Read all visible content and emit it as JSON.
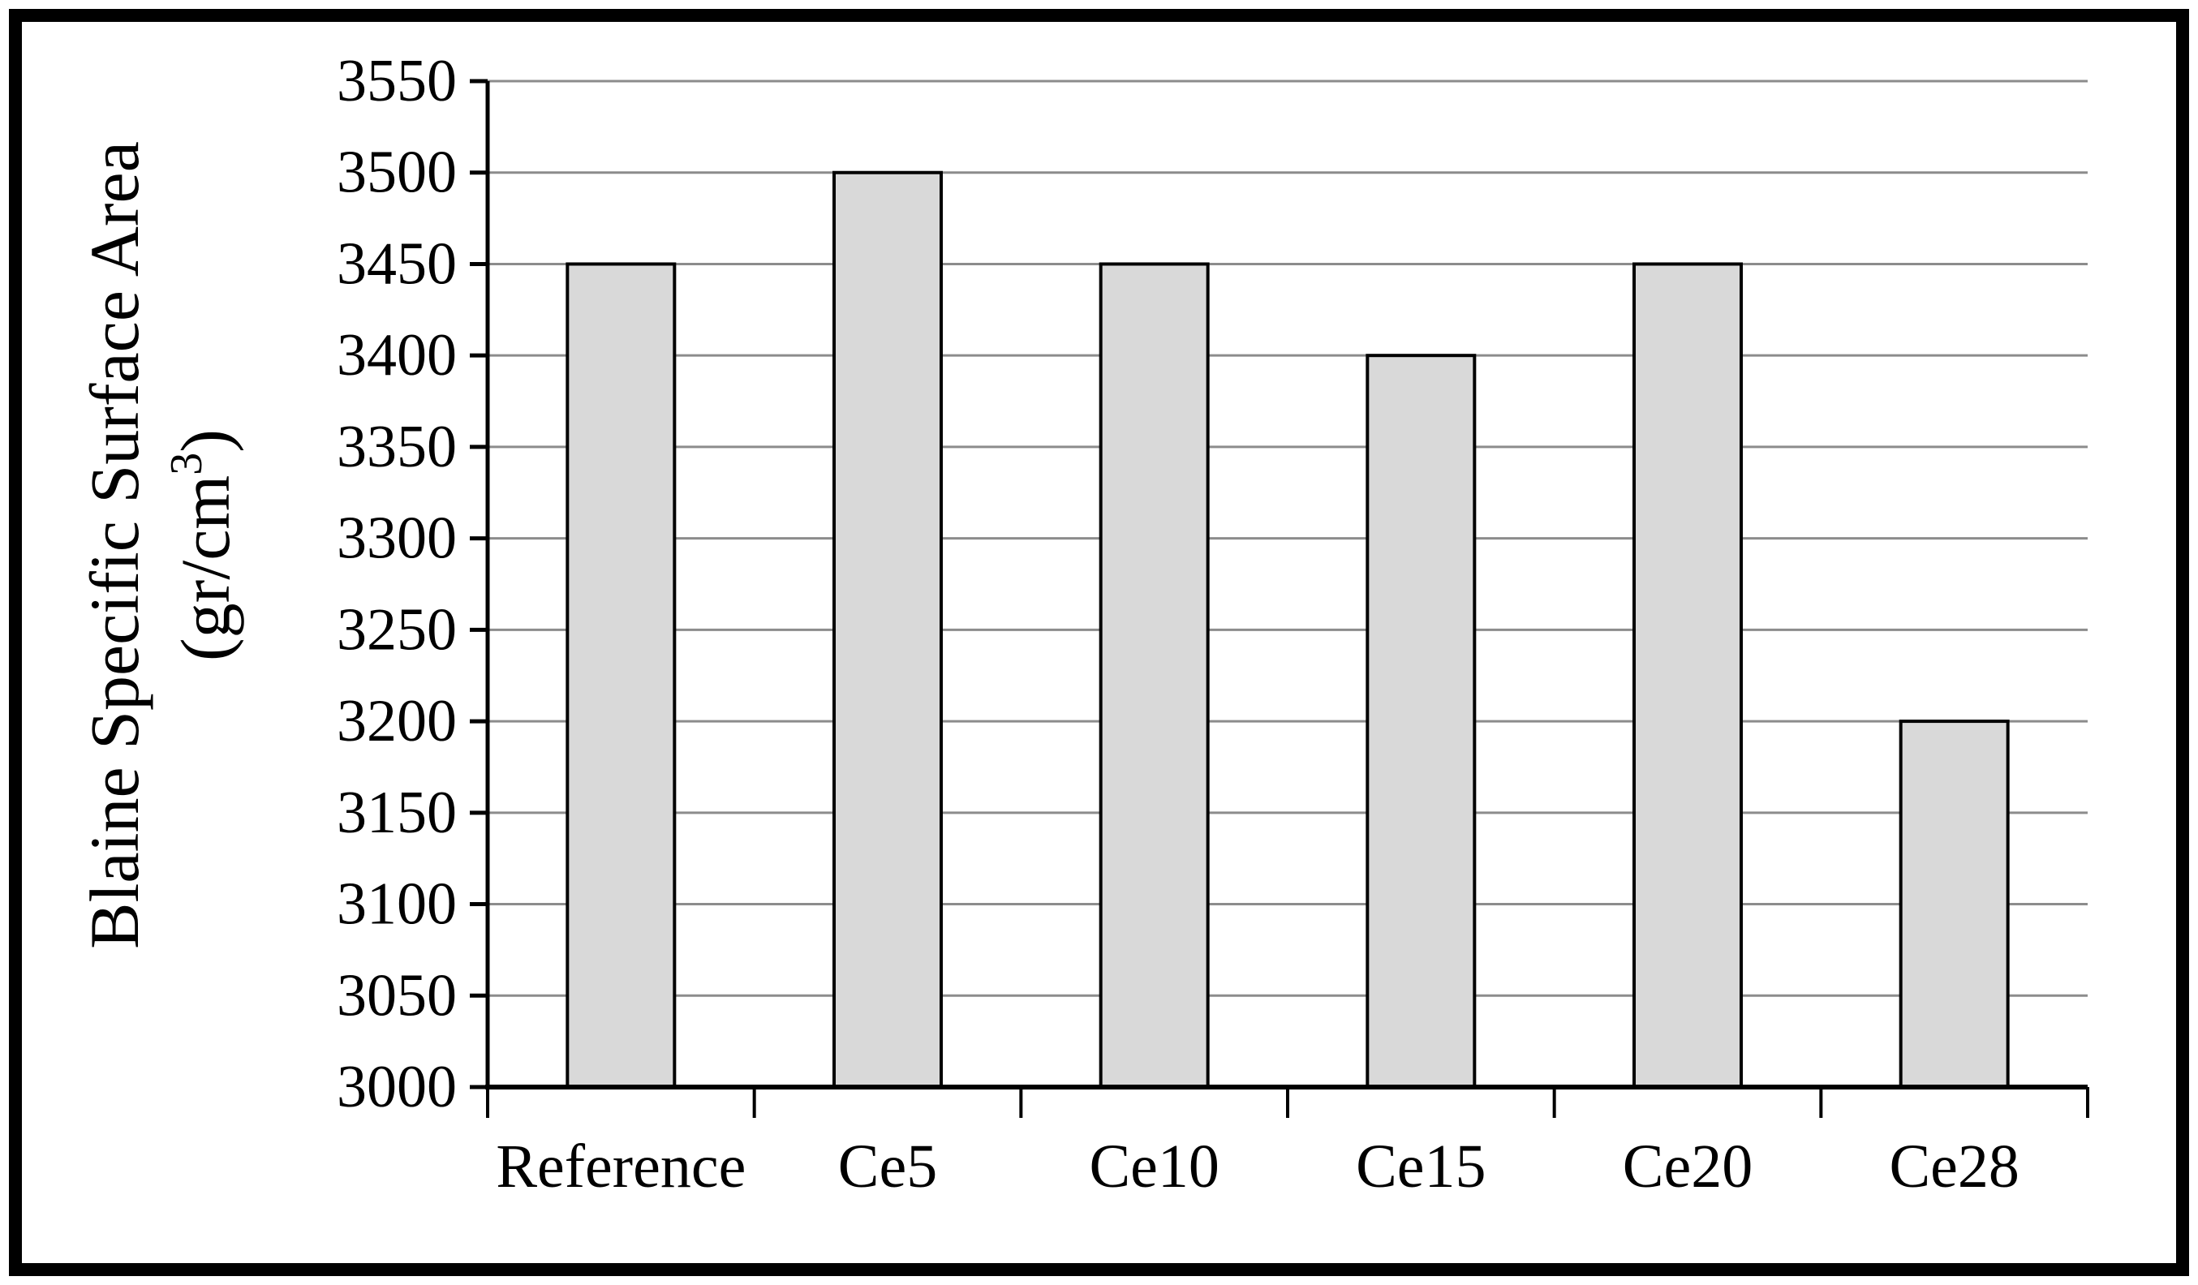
{
  "figure": {
    "background": "#ffffff",
    "border_color": "#000000"
  },
  "chart_data": {
    "type": "bar",
    "title": "",
    "categories": [
      "Reference",
      "Ce5",
      "Ce10",
      "Ce15",
      "Ce20",
      "Ce28"
    ],
    "values": [
      3450,
      3500,
      3450,
      3400,
      3450,
      3200
    ],
    "xlabel": "",
    "ylabel_line1": "Blaine Specific Surface Area",
    "ylabel_unit_prefix": "(gr/cm",
    "ylabel_unit_sup": "3",
    "ylabel_unit_suffix": ")",
    "ylim": [
      3000,
      3550
    ],
    "ytick_step": 50,
    "ytick_labels": [
      "3000",
      "3050",
      "3100",
      "3150",
      "3200",
      "3250",
      "3300",
      "3350",
      "3400",
      "3450",
      "3500",
      "3550"
    ],
    "grid": "horizontal",
    "legend": "none",
    "colors": {
      "bar_fill": "#d9d9d9",
      "bar_stroke": "#000000",
      "gridline": "#8c8c8c",
      "axis": "#000000",
      "text": "#000000"
    }
  }
}
